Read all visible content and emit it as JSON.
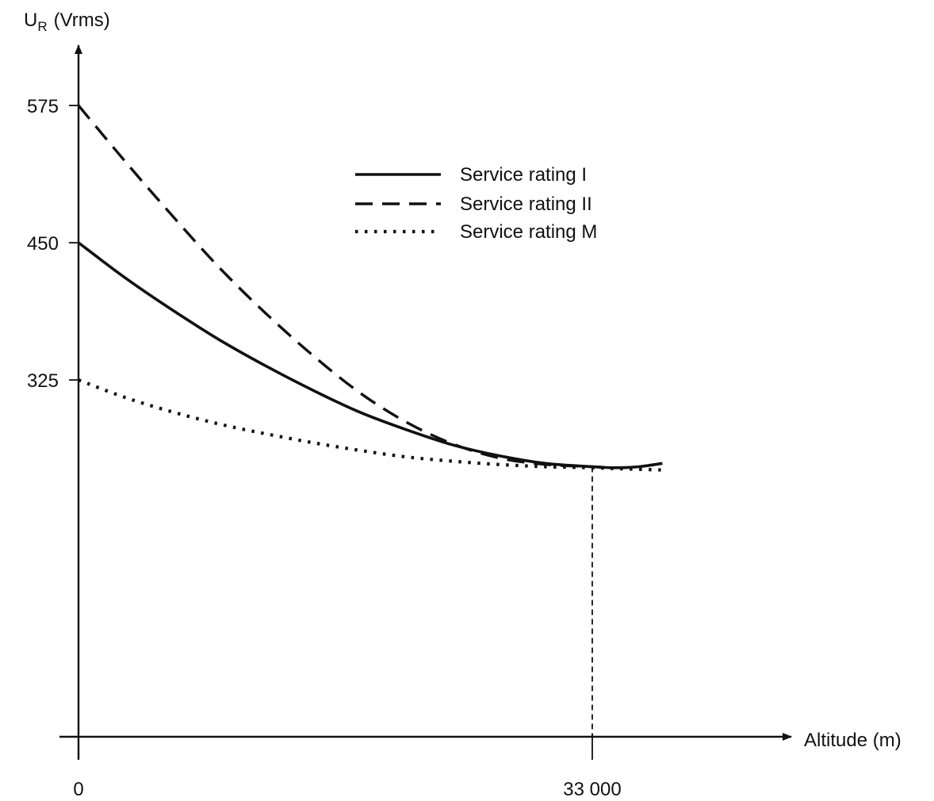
{
  "chart_data": {
    "type": "line",
    "title": "",
    "ylabel": "U",
    "ylabel_subscript": "R",
    "ylabel_unit": "(Vrms)",
    "xlabel": "Altitude (m)",
    "xlim": [
      0,
      41000
    ],
    "ylim": [
      0,
      625
    ],
    "grid": false,
    "legend_position": "top-center",
    "y_ticks": [
      {
        "value": 575,
        "label": "575"
      },
      {
        "value": 450,
        "label": "450"
      },
      {
        "value": 325,
        "label": "325"
      }
    ],
    "x_ticks": [
      {
        "value": 0,
        "label": "0"
      },
      {
        "value": 33000,
        "label": "33 000"
      }
    ],
    "reference_line": {
      "x": 33000,
      "style": "dashed"
    },
    "series": [
      {
        "name": "Service rating I",
        "style": "solid",
        "x": [
          0,
          3000,
          6000,
          9000,
          12000,
          15000,
          18000,
          21000,
          24000,
          27000,
          30000,
          33000,
          34500,
          36000,
          37500
        ],
        "y": [
          450,
          418,
          389,
          362,
          338,
          316,
          296,
          280,
          266,
          256,
          249,
          246,
          245,
          246,
          249
        ]
      },
      {
        "name": "Service rating II",
        "style": "dashed",
        "x": [
          0,
          3000,
          6000,
          9000,
          12000,
          15000,
          18000,
          21000,
          24000,
          27000,
          30000,
          33000,
          34500,
          36000,
          37500
        ],
        "y": [
          575,
          524,
          475,
          428,
          386,
          348,
          314,
          287,
          267,
          254,
          248,
          246,
          245,
          246,
          249
        ]
      },
      {
        "name": "Service rating M",
        "style": "dotted",
        "x": [
          0,
          3000,
          6000,
          9000,
          12000,
          15000,
          18000,
          21000,
          24000,
          27000,
          30000,
          33000,
          35000,
          37500
        ],
        "y": [
          325,
          309,
          296,
          285,
          276,
          268,
          261,
          255,
          251,
          248,
          246,
          245,
          244,
          243
        ]
      }
    ]
  }
}
